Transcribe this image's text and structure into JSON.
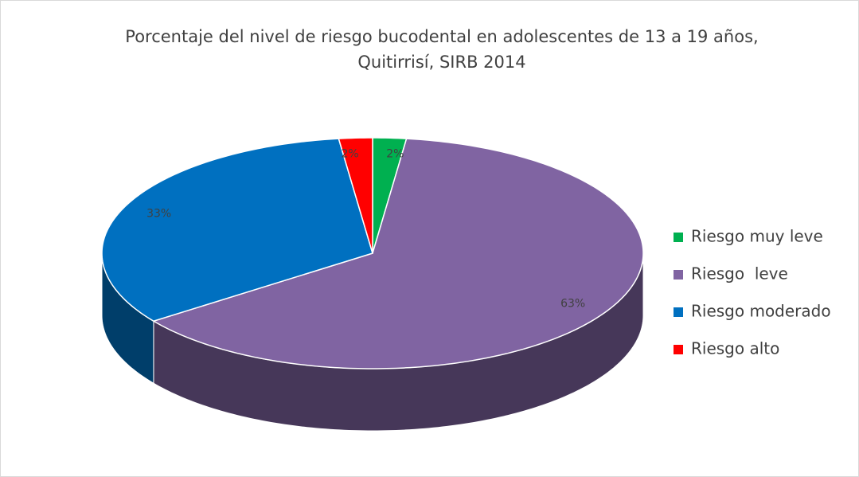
{
  "chart_data": {
    "type": "pie",
    "title": [
      "Porcentaje del nivel de riesgo bucodental en adolescentes de 13 a 19 años,",
      "Quitirrisí, SIRB 2014"
    ],
    "categories": [
      "Riesgo muy leve",
      "Riesgo  leve",
      "Riesgo moderado",
      "Riesgo alto"
    ],
    "values": [
      2,
      63,
      33,
      2
    ],
    "value_labels": [
      "2%",
      "63%",
      "33%",
      "2%"
    ],
    "colors": [
      "#00b050",
      "#8064a2",
      "#0070c0",
      "#ff0000"
    ],
    "legend": "right"
  }
}
